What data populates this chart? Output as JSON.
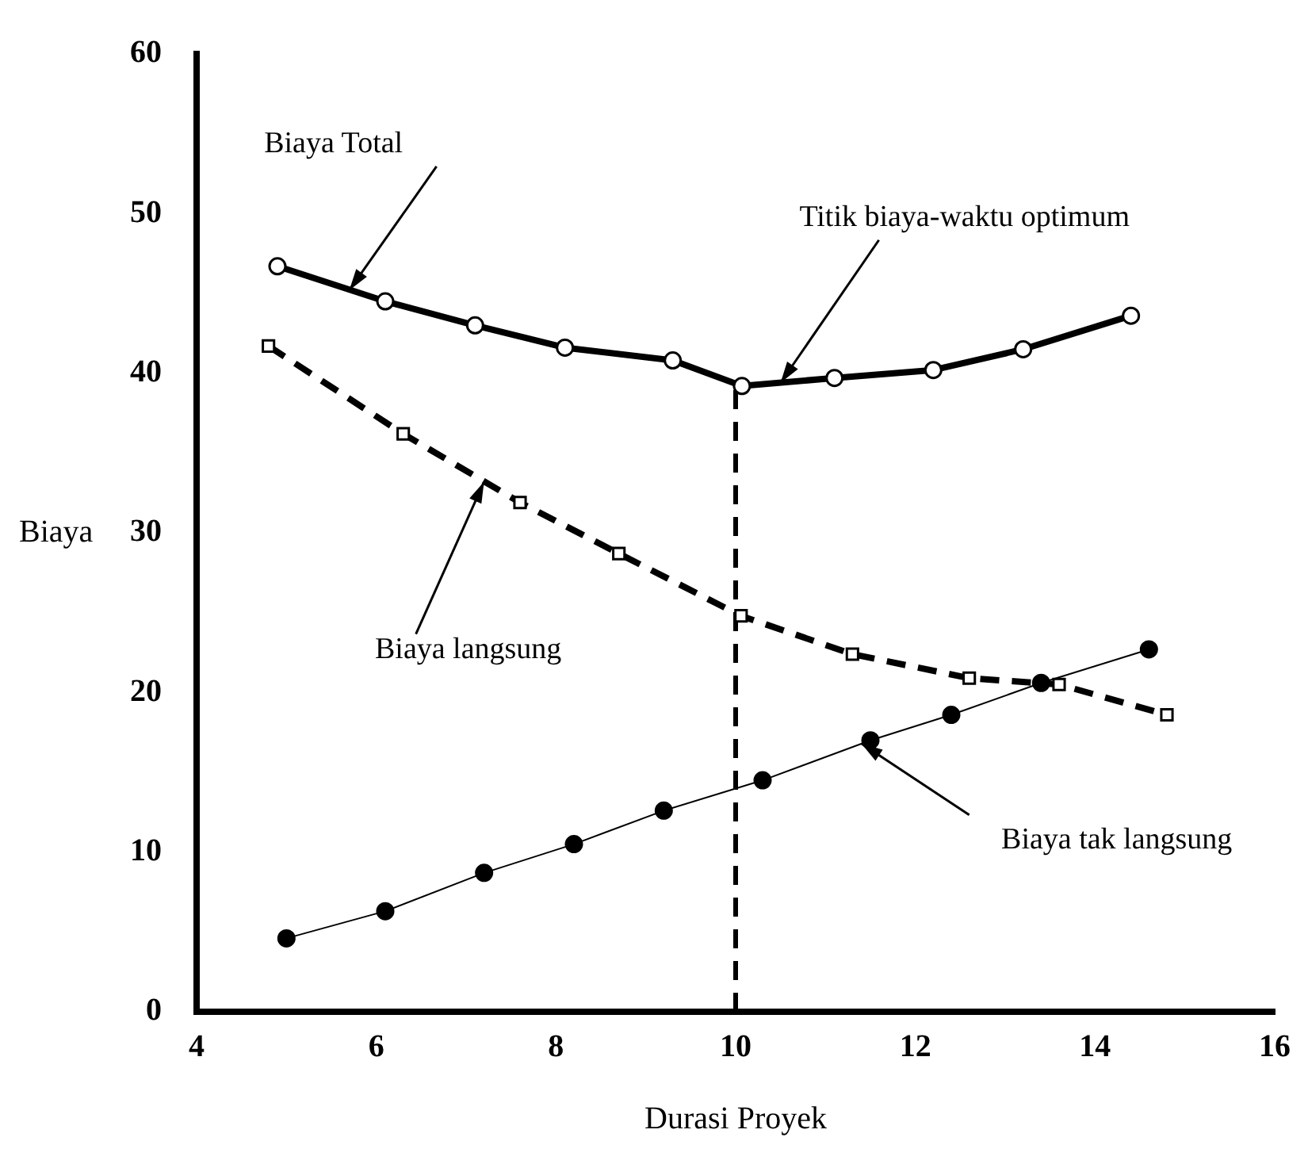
{
  "chart_data": {
    "type": "line",
    "xlabel": "Durasi Proyek",
    "ylabel": "Biaya",
    "xlim": [
      4,
      16
    ],
    "xticks": [
      4,
      6,
      8,
      10,
      12,
      14,
      16
    ],
    "ylim": [
      0,
      60
    ],
    "yticks": [
      0,
      10,
      20,
      30,
      40,
      50,
      60
    ],
    "grid": false,
    "legend": false,
    "series": [
      {
        "color": "#000000",
        "marker": "circle",
        "line_style": "solid",
        "x": [
          4.9,
          6.1,
          7.1,
          8.1,
          9.3,
          10.07,
          11.1,
          12.2,
          13.2,
          14.4
        ],
        "values": [
          46.7,
          44.5,
          43.0,
          41.6,
          40.8,
          39.2,
          39.7,
          40.2,
          41.5,
          43.6
        ]
      },
      {
        "color": "#000000",
        "marker": "square",
        "line_style": "dashed",
        "x": [
          4.8,
          6.3,
          7.6,
          8.7,
          10.06,
          11.3,
          12.6,
          13.6,
          14.8
        ],
        "values": [
          41.7,
          36.2,
          31.9,
          28.7,
          24.8,
          22.4,
          20.9,
          20.5,
          18.6
        ]
      },
      {
        "color": "#000000",
        "marker": "circle",
        "line_style": "solid",
        "x": [
          5.0,
          6.1,
          7.2,
          8.2,
          9.2,
          10.3,
          11.5,
          12.4,
          13.4,
          14.6
        ],
        "values": [
          4.6,
          6.3,
          8.7,
          10.5,
          12.6,
          14.5,
          17.0,
          18.6,
          20.6,
          22.7
        ]
      },
      {
        "type": "line",
        "color": "#000000",
        "marker": "none",
        "line_style": "dashed",
        "x": [
          10,
          10
        ],
        "values": [
          0,
          39.2
        ]
      }
    ],
    "annotations": [
      {
        "text": "Biaya Total",
        "x": 5.7,
        "y": 45.2
      },
      {
        "text": "Titik biaya-waktu optimum",
        "x": 10.5,
        "y": 39.4
      },
      {
        "text": "Biaya langsung",
        "x": 7.2,
        "y": 33.2
      },
      {
        "text": "Biaya tak langsung",
        "x": 11.4,
        "y": 16.8
      }
    ]
  }
}
